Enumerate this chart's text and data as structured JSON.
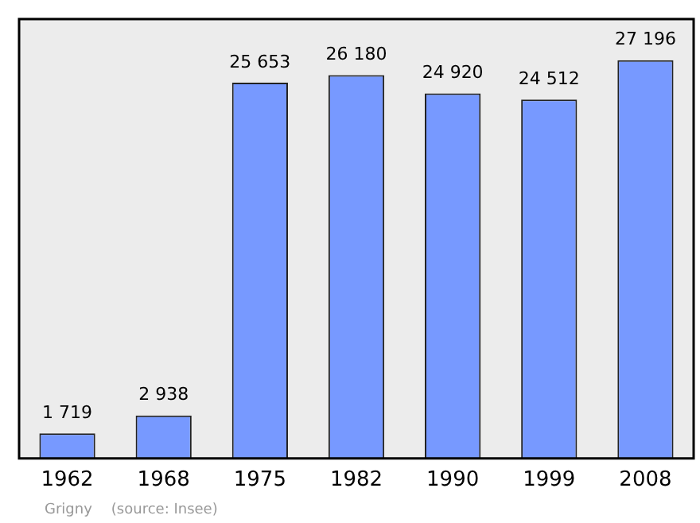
{
  "chart_data": {
    "type": "bar",
    "categories": [
      "1962",
      "1968",
      "1975",
      "1982",
      "1990",
      "1999",
      "2008"
    ],
    "values": [
      1719,
      2938,
      25653,
      26180,
      24920,
      24512,
      27196
    ],
    "color": "#7799ff",
    "data_labels": true,
    "value_labels": [
      "1 719",
      "2 938",
      "25 653",
      "26 180",
      "24 920",
      "24 512",
      "27 196"
    ],
    "grid": false,
    "legend": false,
    "annotations": [
      "Grigny",
      "(source: Insee)"
    ]
  }
}
